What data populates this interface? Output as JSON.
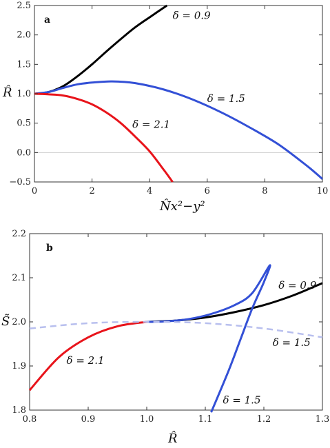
{
  "chart_data": [
    {
      "type": "line",
      "panel_label": "a",
      "xlabel": "N̂x²−y²",
      "ylabel": "R̂",
      "xlim": [
        0,
        10
      ],
      "ylim": [
        -0.5,
        2.5
      ],
      "x_ticks": [
        "0",
        "2",
        "4",
        "6",
        "8",
        "10"
      ],
      "y_ticks": [
        "−0.5",
        "0.0",
        "0.5",
        "1.0",
        "1.5",
        "2.0",
        "2.5"
      ],
      "reference_line_y": 0,
      "series": [
        {
          "name": "δ = 0.9",
          "color": "#000000",
          "x": [
            0,
            0.5,
            1.0,
            1.5,
            2.0,
            2.5,
            3.0,
            3.5,
            4.0,
            4.6
          ],
          "y": [
            1.0,
            1.03,
            1.13,
            1.3,
            1.5,
            1.72,
            1.93,
            2.13,
            2.3,
            2.5
          ]
        },
        {
          "name": "δ = 1.5",
          "color": "#3350d6",
          "x": [
            0,
            0.5,
            1.0,
            1.5,
            2.0,
            2.7,
            3.5,
            4.5,
            5.5,
            6.5,
            7.5,
            8.5,
            9.5,
            10.0
          ],
          "y": [
            1.0,
            1.03,
            1.1,
            1.16,
            1.19,
            1.21,
            1.18,
            1.07,
            0.9,
            0.68,
            0.42,
            0.13,
            -0.24,
            -0.45
          ]
        },
        {
          "name": "δ = 2.1",
          "color": "#e8141b",
          "x": [
            0,
            0.5,
            1.0,
            1.5,
            2.0,
            2.5,
            3.0,
            3.5,
            4.0,
            4.5,
            4.8
          ],
          "y": [
            1.0,
            0.99,
            0.97,
            0.91,
            0.82,
            0.68,
            0.5,
            0.27,
            0.02,
            -0.3,
            -0.5
          ]
        }
      ],
      "annotations": [
        {
          "text": "δ = 0.9",
          "x": 4.8,
          "y": 2.27
        },
        {
          "text": "δ = 1.5",
          "x": 6.0,
          "y": 0.86
        },
        {
          "text": "δ = 2.1",
          "x": 3.4,
          "y": 0.42
        }
      ]
    },
    {
      "type": "line",
      "panel_label": "b",
      "xlabel": "R̂",
      "ylabel": "S̃",
      "xlim": [
        0.8,
        1.3
      ],
      "ylim": [
        1.8,
        2.2
      ],
      "x_ticks": [
        "0.8",
        "0.9",
        "1.0",
        "1.1",
        "1.2",
        "1.3"
      ],
      "y_ticks": [
        "1.8",
        "1.9",
        "2.0",
        "2.1",
        "2.2"
      ],
      "series": [
        {
          "name": "δ = 0.9",
          "color": "#000000",
          "x": [
            1.0,
            1.05,
            1.1,
            1.15,
            1.2,
            1.25,
            1.3
          ],
          "y": [
            2.0,
            2.003,
            2.01,
            2.022,
            2.038,
            2.06,
            2.088
          ]
        },
        {
          "name": "δ = 1.5",
          "color": "#3350d6",
          "x": [
            1.0,
            1.03,
            1.07,
            1.11,
            1.15,
            1.18,
            1.21,
            1.2,
            1.18,
            1.16,
            1.14,
            1.11
          ],
          "y": [
            2.0,
            2.001,
            2.006,
            2.018,
            2.038,
            2.065,
            2.128,
            2.09,
            2.03,
            1.96,
            1.89,
            1.795
          ]
        },
        {
          "name": "δ = 2.1",
          "color": "#e8141b",
          "x": [
            0.8,
            0.85,
            0.9,
            0.95,
            1.0
          ],
          "y": [
            1.845,
            1.92,
            1.965,
            1.99,
            2.0
          ]
        },
        {
          "name": "δ = 1.5 (dashed)",
          "color": "#b8bfee",
          "dashed": true,
          "x": [
            0.8,
            0.9,
            1.0,
            1.1,
            1.2,
            1.3
          ],
          "y": [
            1.985,
            1.997,
            2.0,
            1.997,
            1.985,
            1.965
          ]
        }
      ],
      "annotations": [
        {
          "text": "δ = 0.9",
          "x": 1.225,
          "y": 2.075
        },
        {
          "text": "δ = 1.5",
          "x": 1.215,
          "y": 1.945
        },
        {
          "text": "δ = 2.1",
          "x": 0.863,
          "y": 1.905
        },
        {
          "text": "δ = 1.5",
          "x": 1.13,
          "y": 1.815
        }
      ]
    }
  ]
}
